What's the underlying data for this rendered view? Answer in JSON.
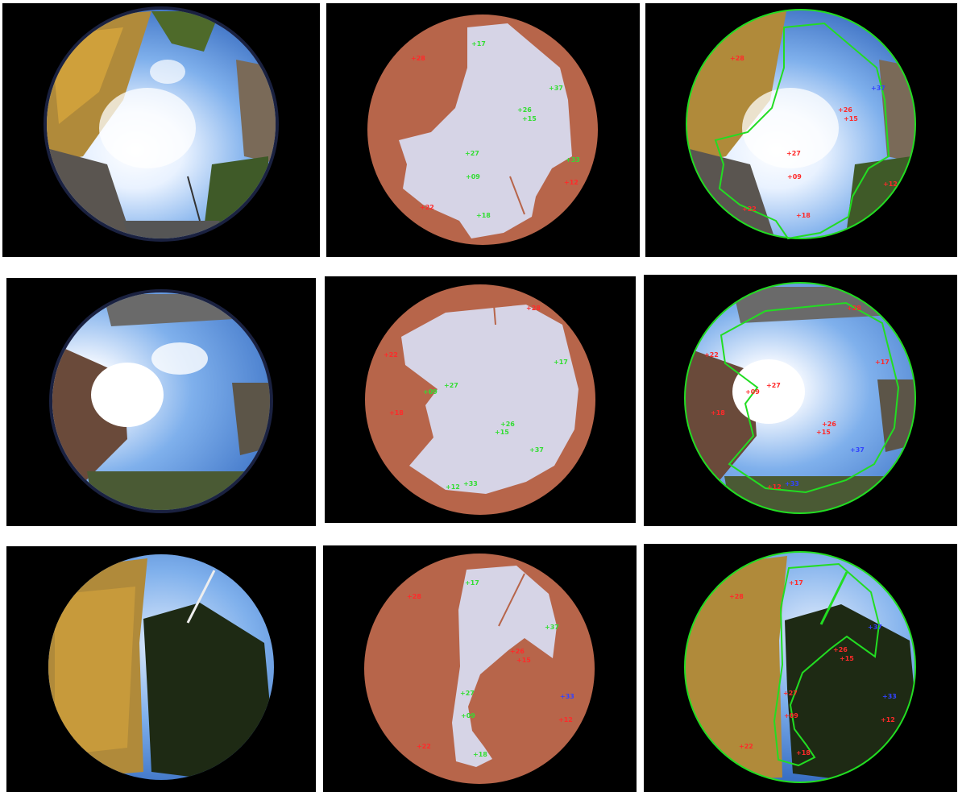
{
  "palette": {
    "mask_obstacle": "#b7654a",
    "mask_sky": "#d6d4e6",
    "outline": "#22dd22",
    "label_red": "#ff2a2a",
    "label_green": "#33dd33",
    "label_blue": "#3344ff"
  },
  "rows": [
    {
      "photo": {
        "content": "fisheye sky photo with yellow building, trees and lamp post"
      },
      "mask": {
        "labels": [
          {
            "text": "+28",
            "color": "red"
          },
          {
            "text": "+17",
            "color": "green"
          },
          {
            "text": "+37",
            "color": "green"
          },
          {
            "text": "+26",
            "color": "green"
          },
          {
            "text": "+15",
            "color": "green"
          },
          {
            "text": "+27",
            "color": "green"
          },
          {
            "text": "+33",
            "color": "green"
          },
          {
            "text": "+09",
            "color": "green"
          },
          {
            "text": "+12",
            "color": "red"
          },
          {
            "text": "+22",
            "color": "red"
          },
          {
            "text": "+18",
            "color": "green"
          }
        ]
      },
      "overlay": {
        "labels": [
          {
            "text": "+28",
            "color": "red"
          },
          {
            "text": "+37",
            "color": "blue"
          },
          {
            "text": "+26",
            "color": "red"
          },
          {
            "text": "+15",
            "color": "red"
          },
          {
            "text": "+27",
            "color": "red"
          },
          {
            "text": "+09",
            "color": "red"
          },
          {
            "text": "+12",
            "color": "red"
          },
          {
            "text": "+22",
            "color": "red"
          },
          {
            "text": "+18",
            "color": "red"
          }
        ]
      }
    },
    {
      "photo": {
        "content": "fisheye sky photo with sun glare and brick building"
      },
      "mask": {
        "labels": [
          {
            "text": "+28",
            "color": "red"
          },
          {
            "text": "+22",
            "color": "red"
          },
          {
            "text": "+17",
            "color": "green"
          },
          {
            "text": "+27",
            "color": "green"
          },
          {
            "text": "+09",
            "color": "green"
          },
          {
            "text": "+18",
            "color": "red"
          },
          {
            "text": "+26",
            "color": "green"
          },
          {
            "text": "+15",
            "color": "green"
          },
          {
            "text": "+37",
            "color": "green"
          },
          {
            "text": "+12",
            "color": "green"
          },
          {
            "text": "+33",
            "color": "green"
          }
        ]
      },
      "overlay": {
        "labels": [
          {
            "text": "+28",
            "color": "red"
          },
          {
            "text": "+22",
            "color": "red"
          },
          {
            "text": "+17",
            "color": "red"
          },
          {
            "text": "+27",
            "color": "red"
          },
          {
            "text": "+09",
            "color": "red"
          },
          {
            "text": "+18",
            "color": "red"
          },
          {
            "text": "+26",
            "color": "red"
          },
          {
            "text": "+15",
            "color": "red"
          },
          {
            "text": "+37",
            "color": "blue"
          },
          {
            "text": "+12",
            "color": "red"
          },
          {
            "text": "+33",
            "color": "blue"
          }
        ]
      }
    },
    {
      "photo": {
        "content": "fisheye sky photo with yellow building and large tree"
      },
      "mask": {
        "labels": [
          {
            "text": "+28",
            "color": "red"
          },
          {
            "text": "+17",
            "color": "green"
          },
          {
            "text": "+37",
            "color": "green"
          },
          {
            "text": "+26",
            "color": "red"
          },
          {
            "text": "+15",
            "color": "red"
          },
          {
            "text": "+27",
            "color": "green"
          },
          {
            "text": "+33",
            "color": "blue"
          },
          {
            "text": "+09",
            "color": "green"
          },
          {
            "text": "+12",
            "color": "red"
          },
          {
            "text": "+22",
            "color": "red"
          },
          {
            "text": "+18",
            "color": "green"
          }
        ]
      },
      "overlay": {
        "labels": [
          {
            "text": "+28",
            "color": "red"
          },
          {
            "text": "+17",
            "color": "red"
          },
          {
            "text": "+37",
            "color": "blue"
          },
          {
            "text": "+26",
            "color": "red"
          },
          {
            "text": "+15",
            "color": "red"
          },
          {
            "text": "+27",
            "color": "red"
          },
          {
            "text": "+33",
            "color": "blue"
          },
          {
            "text": "+09",
            "color": "red"
          },
          {
            "text": "+12",
            "color": "red"
          },
          {
            "text": "+22",
            "color": "red"
          },
          {
            "text": "+18",
            "color": "red"
          }
        ]
      }
    }
  ]
}
